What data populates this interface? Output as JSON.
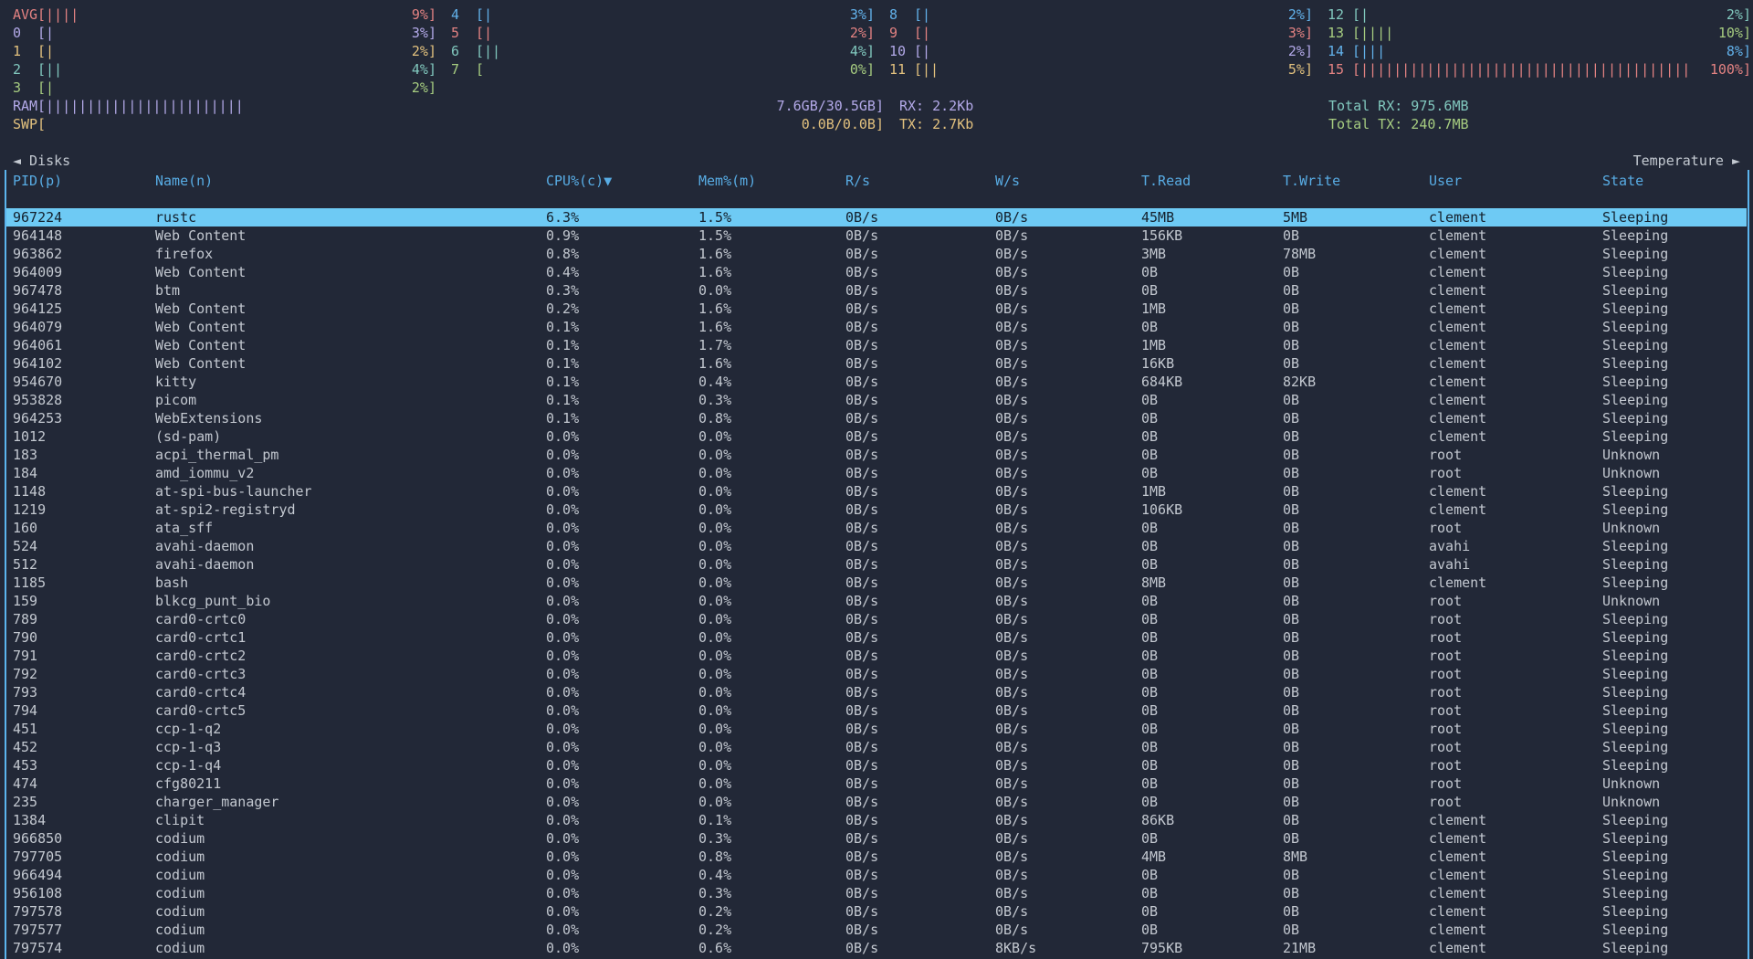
{
  "colors": {
    "background": "#222837",
    "text": "#c3c8d0",
    "header_blue": "#58ace4",
    "border_blue": "#5bb4ed",
    "selected_row_bg": "#6ecaf4",
    "selected_row_fg": "#14202c",
    "cpu_red": "#e38282",
    "cpu_purple": "#b3a9e8",
    "cpu_yellow": "#e2c17e",
    "cpu_teal": "#81c8be",
    "cpu_green": "#a6cc80",
    "cpu_blue": "#62b1ea"
  },
  "cpu_columns": [
    [
      {
        "label": "AVG",
        "ticks": 4,
        "pct": "9%",
        "color": "#e38282"
      },
      {
        "label": "0",
        "ticks": 1,
        "pct": "3%",
        "color": "#b3a9e8"
      },
      {
        "label": "1",
        "ticks": 1,
        "pct": "2%",
        "color": "#e2c17e"
      },
      {
        "label": "2",
        "ticks": 2,
        "pct": "4%",
        "color": "#81c8be"
      },
      {
        "label": "3",
        "ticks": 1,
        "pct": "2%",
        "color": "#a6cc80"
      }
    ],
    [
      {
        "label": "4",
        "ticks": 1,
        "pct": "3%",
        "color": "#62b1ea"
      },
      {
        "label": "5",
        "ticks": 1,
        "pct": "2%",
        "color": "#e38282"
      },
      {
        "label": "6",
        "ticks": 2,
        "pct": "4%",
        "color": "#81c8be"
      },
      {
        "label": "7",
        "ticks": 0,
        "pct": "0%",
        "color": "#a6cc80"
      }
    ],
    [
      {
        "label": "8",
        "ticks": 1,
        "pct": "2%",
        "color": "#62b1ea"
      },
      {
        "label": "9",
        "ticks": 1,
        "pct": "3%",
        "color": "#e38282"
      },
      {
        "label": "10",
        "ticks": 1,
        "pct": "2%",
        "color": "#b3a9e8"
      },
      {
        "label": "11",
        "ticks": 2,
        "pct": "5%",
        "color": "#e2c17e"
      }
    ],
    [
      {
        "label": "12",
        "ticks": 1,
        "pct": "2%",
        "color": "#81c8be"
      },
      {
        "label": "13",
        "ticks": 4,
        "pct": "10%",
        "color": "#a6cc80"
      },
      {
        "label": "14",
        "ticks": 3,
        "pct": "8%",
        "color": "#62b1ea"
      },
      {
        "label": "15",
        "ticks": 40,
        "pct": "100%",
        "color": "#e38282"
      }
    ]
  ],
  "memory": {
    "rows": [
      {
        "label": "RAM",
        "ticks": 24,
        "value": "7.6GB/30.5GB",
        "color": "#b3a9e8"
      },
      {
        "label": "SWP",
        "ticks": 0,
        "value": "0.0B/0.0B",
        "color": "#e2c17e"
      }
    ]
  },
  "network": {
    "rx": "RX: 2.2Kb",
    "tx": "TX: 2.7Kb",
    "total_rx": "Total RX: 975.6MB",
    "total_tx": "Total TX: 240.7MB"
  },
  "process_widget": {
    "left_tab": "◄ Disks",
    "right_tab": "Temperature ►",
    "headers": [
      "PID(p)",
      "Name(n)",
      "CPU%(c)▼",
      "Mem%(m)",
      "R/s",
      "W/s",
      "T.Read",
      "T.Write",
      "User",
      "State"
    ],
    "selected_index": 0,
    "rows": [
      [
        "967224",
        "rustc",
        "6.3%",
        "1.5%",
        "0B/s",
        "0B/s",
        "45MB",
        "5MB",
        "clement",
        "Sleeping"
      ],
      [
        "964148",
        "Web Content",
        "0.9%",
        "1.5%",
        "0B/s",
        "0B/s",
        "156KB",
        "0B",
        "clement",
        "Sleeping"
      ],
      [
        "963862",
        "firefox",
        "0.8%",
        "1.6%",
        "0B/s",
        "0B/s",
        "3MB",
        "78MB",
        "clement",
        "Sleeping"
      ],
      [
        "964009",
        "Web Content",
        "0.4%",
        "1.6%",
        "0B/s",
        "0B/s",
        "0B",
        "0B",
        "clement",
        "Sleeping"
      ],
      [
        "967478",
        "btm",
        "0.3%",
        "0.0%",
        "0B/s",
        "0B/s",
        "0B",
        "0B",
        "clement",
        "Sleeping"
      ],
      [
        "964125",
        "Web Content",
        "0.2%",
        "1.6%",
        "0B/s",
        "0B/s",
        "1MB",
        "0B",
        "clement",
        "Sleeping"
      ],
      [
        "964079",
        "Web Content",
        "0.1%",
        "1.6%",
        "0B/s",
        "0B/s",
        "0B",
        "0B",
        "clement",
        "Sleeping"
      ],
      [
        "964061",
        "Web Content",
        "0.1%",
        "1.7%",
        "0B/s",
        "0B/s",
        "1MB",
        "0B",
        "clement",
        "Sleeping"
      ],
      [
        "964102",
        "Web Content",
        "0.1%",
        "1.6%",
        "0B/s",
        "0B/s",
        "16KB",
        "0B",
        "clement",
        "Sleeping"
      ],
      [
        "954670",
        "kitty",
        "0.1%",
        "0.4%",
        "0B/s",
        "0B/s",
        "684KB",
        "82KB",
        "clement",
        "Sleeping"
      ],
      [
        "953828",
        "picom",
        "0.1%",
        "0.3%",
        "0B/s",
        "0B/s",
        "0B",
        "0B",
        "clement",
        "Sleeping"
      ],
      [
        "964253",
        "WebExtensions",
        "0.1%",
        "0.8%",
        "0B/s",
        "0B/s",
        "0B",
        "0B",
        "clement",
        "Sleeping"
      ],
      [
        "1012",
        "(sd-pam)",
        "0.0%",
        "0.0%",
        "0B/s",
        "0B/s",
        "0B",
        "0B",
        "clement",
        "Sleeping"
      ],
      [
        "183",
        "acpi_thermal_pm",
        "0.0%",
        "0.0%",
        "0B/s",
        "0B/s",
        "0B",
        "0B",
        "root",
        "Unknown"
      ],
      [
        "184",
        "amd_iommu_v2",
        "0.0%",
        "0.0%",
        "0B/s",
        "0B/s",
        "0B",
        "0B",
        "root",
        "Unknown"
      ],
      [
        "1148",
        "at-spi-bus-launcher",
        "0.0%",
        "0.0%",
        "0B/s",
        "0B/s",
        "1MB",
        "0B",
        "clement",
        "Sleeping"
      ],
      [
        "1219",
        "at-spi2-registryd",
        "0.0%",
        "0.0%",
        "0B/s",
        "0B/s",
        "106KB",
        "0B",
        "clement",
        "Sleeping"
      ],
      [
        "160",
        "ata_sff",
        "0.0%",
        "0.0%",
        "0B/s",
        "0B/s",
        "0B",
        "0B",
        "root",
        "Unknown"
      ],
      [
        "524",
        "avahi-daemon",
        "0.0%",
        "0.0%",
        "0B/s",
        "0B/s",
        "0B",
        "0B",
        "avahi",
        "Sleeping"
      ],
      [
        "512",
        "avahi-daemon",
        "0.0%",
        "0.0%",
        "0B/s",
        "0B/s",
        "0B",
        "0B",
        "avahi",
        "Sleeping"
      ],
      [
        "1185",
        "bash",
        "0.0%",
        "0.0%",
        "0B/s",
        "0B/s",
        "8MB",
        "0B",
        "clement",
        "Sleeping"
      ],
      [
        "159",
        "blkcg_punt_bio",
        "0.0%",
        "0.0%",
        "0B/s",
        "0B/s",
        "0B",
        "0B",
        "root",
        "Unknown"
      ],
      [
        "789",
        "card0-crtc0",
        "0.0%",
        "0.0%",
        "0B/s",
        "0B/s",
        "0B",
        "0B",
        "root",
        "Sleeping"
      ],
      [
        "790",
        "card0-crtc1",
        "0.0%",
        "0.0%",
        "0B/s",
        "0B/s",
        "0B",
        "0B",
        "root",
        "Sleeping"
      ],
      [
        "791",
        "card0-crtc2",
        "0.0%",
        "0.0%",
        "0B/s",
        "0B/s",
        "0B",
        "0B",
        "root",
        "Sleeping"
      ],
      [
        "792",
        "card0-crtc3",
        "0.0%",
        "0.0%",
        "0B/s",
        "0B/s",
        "0B",
        "0B",
        "root",
        "Sleeping"
      ],
      [
        "793",
        "card0-crtc4",
        "0.0%",
        "0.0%",
        "0B/s",
        "0B/s",
        "0B",
        "0B",
        "root",
        "Sleeping"
      ],
      [
        "794",
        "card0-crtc5",
        "0.0%",
        "0.0%",
        "0B/s",
        "0B/s",
        "0B",
        "0B",
        "root",
        "Sleeping"
      ],
      [
        "451",
        "ccp-1-q2",
        "0.0%",
        "0.0%",
        "0B/s",
        "0B/s",
        "0B",
        "0B",
        "root",
        "Sleeping"
      ],
      [
        "452",
        "ccp-1-q3",
        "0.0%",
        "0.0%",
        "0B/s",
        "0B/s",
        "0B",
        "0B",
        "root",
        "Sleeping"
      ],
      [
        "453",
        "ccp-1-q4",
        "0.0%",
        "0.0%",
        "0B/s",
        "0B/s",
        "0B",
        "0B",
        "root",
        "Sleeping"
      ],
      [
        "474",
        "cfg80211",
        "0.0%",
        "0.0%",
        "0B/s",
        "0B/s",
        "0B",
        "0B",
        "root",
        "Unknown"
      ],
      [
        "235",
        "charger_manager",
        "0.0%",
        "0.0%",
        "0B/s",
        "0B/s",
        "0B",
        "0B",
        "root",
        "Unknown"
      ],
      [
        "1384",
        "clipit",
        "0.0%",
        "0.1%",
        "0B/s",
        "0B/s",
        "86KB",
        "0B",
        "clement",
        "Sleeping"
      ],
      [
        "966850",
        "codium",
        "0.0%",
        "0.3%",
        "0B/s",
        "0B/s",
        "0B",
        "0B",
        "clement",
        "Sleeping"
      ],
      [
        "797705",
        "codium",
        "0.0%",
        "0.8%",
        "0B/s",
        "0B/s",
        "4MB",
        "8MB",
        "clement",
        "Sleeping"
      ],
      [
        "966494",
        "codium",
        "0.0%",
        "0.4%",
        "0B/s",
        "0B/s",
        "0B",
        "0B",
        "clement",
        "Sleeping"
      ],
      [
        "956108",
        "codium",
        "0.0%",
        "0.3%",
        "0B/s",
        "0B/s",
        "0B",
        "0B",
        "clement",
        "Sleeping"
      ],
      [
        "797578",
        "codium",
        "0.0%",
        "0.2%",
        "0B/s",
        "0B/s",
        "0B",
        "0B",
        "clement",
        "Sleeping"
      ],
      [
        "797577",
        "codium",
        "0.0%",
        "0.2%",
        "0B/s",
        "0B/s",
        "0B",
        "0B",
        "clement",
        "Sleeping"
      ],
      [
        "797574",
        "codium",
        "0.0%",
        "0.6%",
        "0B/s",
        "8KB/s",
        "795KB",
        "21MB",
        "clement",
        "Sleeping"
      ]
    ]
  }
}
